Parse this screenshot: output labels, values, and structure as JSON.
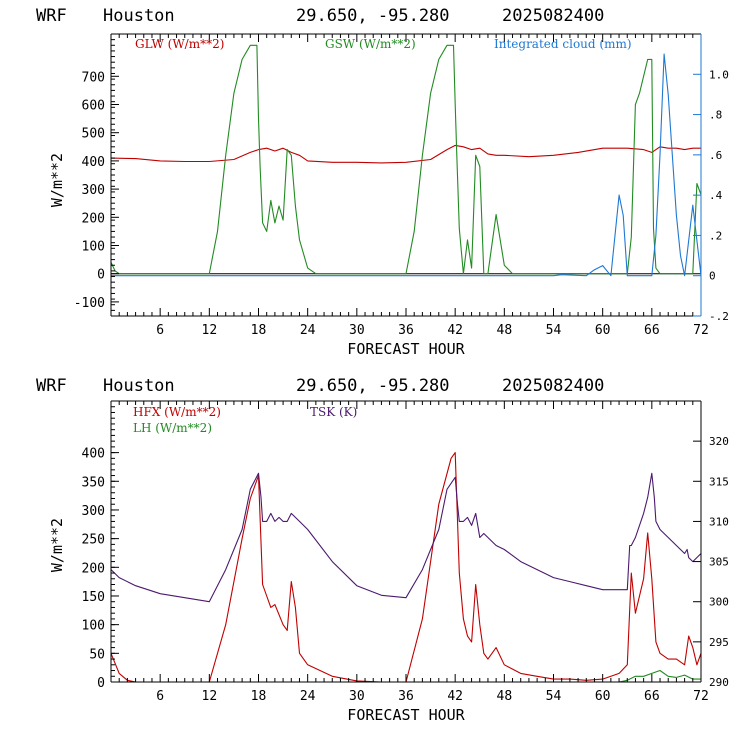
{
  "chart_data": [
    {
      "type": "line",
      "header": {
        "model": "WRF",
        "location": "Houston",
        "coords": "29.650, -95.280",
        "run": "2025082400"
      },
      "xlabel": "FORECAST HOUR",
      "ylabel": "W/m**2",
      "x_ticks": [
        "6",
        "12",
        "18",
        "24",
        "30",
        "36",
        "42",
        "48",
        "54",
        "60",
        "66",
        "72"
      ],
      "xlim": [
        0,
        72
      ],
      "ylim": [
        -150,
        850
      ],
      "y_ticks": [
        "-100",
        "0",
        "100",
        "200",
        "300",
        "400",
        "500",
        "600",
        "700"
      ],
      "y2lim": [
        -0.2,
        1.2
      ],
      "y2_ticks": [
        "-.2",
        "0",
        ".2",
        ".4",
        ".6",
        ".8",
        "1.0"
      ],
      "series": [
        {
          "name": "GLW (W/m**2)",
          "color": "#c00000",
          "axis": "left",
          "x": [
            0,
            3,
            6,
            9,
            12,
            15,
            17,
            18,
            19,
            20,
            21,
            22,
            23,
            24,
            27,
            30,
            33,
            36,
            39,
            41,
            42,
            43,
            44,
            45,
            46,
            47,
            48,
            51,
            54,
            57,
            60,
            63,
            65,
            66,
            67,
            68,
            69,
            70,
            71,
            72
          ],
          "y": [
            410,
            408,
            400,
            398,
            398,
            405,
            430,
            440,
            445,
            435,
            445,
            430,
            420,
            400,
            395,
            395,
            393,
            395,
            405,
            440,
            455,
            450,
            440,
            445,
            425,
            420,
            420,
            415,
            420,
            430,
            445,
            445,
            440,
            430,
            450,
            445,
            445,
            440,
            445,
            445
          ]
        },
        {
          "name": "GSW (W/m**2)",
          "color": "#228b22",
          "axis": "left",
          "x": [
            0,
            0.5,
            1,
            12,
            13,
            14,
            15,
            16,
            17,
            17.8,
            18,
            18.2,
            18.5,
            19,
            19.5,
            20,
            20.5,
            21,
            21.5,
            22,
            22.5,
            23,
            24,
            25,
            36,
            37,
            38,
            39,
            40,
            41,
            41.8,
            42,
            42.2,
            42.5,
            43,
            43.5,
            44,
            44.5,
            45,
            45.5,
            46,
            47,
            48,
            49,
            60,
            62,
            63,
            63.5,
            64,
            64.5,
            65,
            65.5,
            66,
            66.2,
            66.5,
            67,
            67.5,
            68,
            69,
            70,
            70.5,
            71,
            71.5,
            72
          ],
          "y": [
            40,
            10,
            0,
            0,
            150,
            420,
            640,
            760,
            810,
            810,
            550,
            380,
            180,
            150,
            260,
            180,
            240,
            190,
            440,
            420,
            240,
            120,
            20,
            0,
            0,
            150,
            420,
            640,
            760,
            810,
            810,
            600,
            420,
            160,
            0,
            120,
            20,
            420,
            380,
            0,
            0,
            210,
            30,
            0,
            0,
            0,
            0,
            130,
            600,
            640,
            700,
            760,
            760,
            160,
            20,
            0,
            0,
            0,
            0,
            0,
            0,
            0,
            320,
            280
          ]
        },
        {
          "name": "Integrated cloud (mm)",
          "color": "#1e78d2",
          "axis": "right",
          "x": [
            0,
            54,
            55,
            58,
            59,
            60,
            61,
            62,
            62.5,
            63,
            63.5,
            64,
            65,
            66,
            66.5,
            67,
            67.5,
            68,
            68.5,
            69,
            69.5,
            70,
            71,
            72
          ],
          "y": [
            0,
            0,
            0.005,
            0,
            0.03,
            0.05,
            0,
            0.4,
            0.3,
            0,
            0,
            0,
            0,
            0,
            0.2,
            0.6,
            1.1,
            0.9,
            0.6,
            0.3,
            0.1,
            0,
            0.35,
            0
          ]
        }
      ]
    },
    {
      "type": "line",
      "header": {
        "model": "WRF",
        "location": "Houston",
        "coords": "29.650, -95.280",
        "run": "2025082400"
      },
      "xlabel": "FORECAST HOUR",
      "ylabel": "W/m**2",
      "x_ticks": [
        "6",
        "12",
        "18",
        "24",
        "30",
        "36",
        "42",
        "48",
        "54",
        "60",
        "66",
        "72"
      ],
      "xlim": [
        0,
        72
      ],
      "ylim": [
        0,
        490
      ],
      "y_ticks": [
        "0",
        "50",
        "100",
        "150",
        "200",
        "250",
        "300",
        "350",
        "400"
      ],
      "y2lim": [
        290,
        325
      ],
      "y2_ticks": [
        "290",
        "295",
        "300",
        "305",
        "310",
        "315",
        "320"
      ],
      "series": [
        {
          "name": "HFX (W/m**2)",
          "color": "#c00000",
          "axis": "left",
          "x": [
            0,
            1,
            2,
            3,
            12,
            14,
            16,
            17,
            18,
            18.5,
            19,
            19.5,
            20,
            21,
            21.5,
            22,
            22.5,
            23,
            24,
            27,
            30,
            33,
            36,
            38,
            40,
            41.5,
            42,
            42.5,
            43,
            43.5,
            44,
            44.5,
            45,
            45.5,
            46,
            47,
            48,
            50,
            52,
            54,
            56,
            58,
            60,
            62,
            63,
            63.5,
            64,
            65,
            65.5,
            66,
            66.5,
            67,
            68,
            69,
            70,
            70.5,
            71,
            71.5,
            72
          ],
          "y": [
            50,
            15,
            3,
            0,
            0,
            100,
            250,
            320,
            360,
            170,
            150,
            130,
            135,
            100,
            90,
            175,
            130,
            50,
            30,
            10,
            2,
            0,
            0,
            110,
            310,
            390,
            400,
            190,
            110,
            80,
            70,
            170,
            100,
            50,
            40,
            60,
            30,
            15,
            10,
            5,
            5,
            3,
            5,
            15,
            30,
            190,
            120,
            180,
            260,
            180,
            70,
            50,
            40,
            40,
            30,
            80,
            60,
            30,
            50
          ]
        },
        {
          "name": "LH  (W/m**2)",
          "color": "#228b22",
          "axis": "left",
          "x": [
            0,
            62,
            63,
            64,
            65,
            66,
            67,
            68,
            69,
            70,
            71,
            72
          ],
          "y": [
            0,
            0,
            3,
            10,
            10,
            15,
            20,
            10,
            8,
            12,
            5,
            5
          ]
        },
        {
          "name": "TSK (K)",
          "color": "#4b1a6e",
          "axis": "right",
          "x": [
            0,
            1,
            3,
            6,
            9,
            12,
            14,
            16,
            17,
            18,
            18.3,
            18.5,
            19,
            19.5,
            20,
            20.5,
            21,
            21.5,
            22,
            22.5,
            23,
            24,
            27,
            30,
            33,
            36,
            38,
            40,
            41,
            42,
            42.3,
            42.5,
            43,
            43.5,
            44,
            44.5,
            45,
            45.5,
            46,
            47,
            48,
            50,
            52,
            54,
            56,
            58,
            60,
            62,
            63,
            63.3,
            63.5,
            64,
            65,
            65.5,
            66,
            66.3,
            66.5,
            67,
            68,
            69,
            70,
            70.3,
            70.5,
            71,
            72
          ],
          "y": [
            304,
            303,
            302,
            301,
            300.5,
            300,
            304,
            309,
            314,
            316,
            313,
            310,
            310,
            311,
            310,
            310.5,
            310,
            310,
            311,
            310.5,
            310,
            309,
            305,
            302,
            300.8,
            300.5,
            304,
            309,
            314,
            315.5,
            312,
            310,
            310,
            310.5,
            309.5,
            311,
            308,
            308.5,
            308,
            307,
            306.5,
            305,
            304,
            303,
            302.5,
            302,
            301.5,
            301.5,
            301.5,
            307,
            307,
            308,
            311,
            313,
            316,
            313,
            310,
            309,
            308,
            307,
            306,
            306.5,
            305.5,
            305,
            306
          ]
        }
      ]
    }
  ]
}
